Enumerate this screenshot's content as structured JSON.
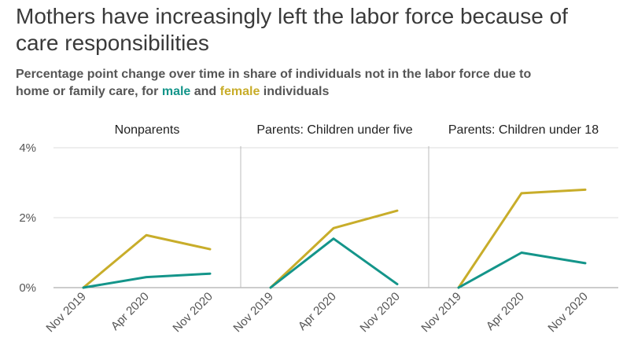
{
  "header": {
    "title": "Mothers have increasingly left the labor force because of care responsibilities",
    "subtitle_before": "Percentage point change over time in share of individuals not in the labor force due to home or family care, for ",
    "male_word": "male",
    "and_word": " and ",
    "female_word": "female",
    "subtitle_after": " individuals"
  },
  "colors": {
    "male": "#14958a",
    "female": "#c8ad2a",
    "grid": "#dddddd",
    "divider": "#bbbbbb"
  },
  "chart_data": {
    "type": "line",
    "x": [
      "Nov 2019",
      "Apr 2020",
      "Nov 2020"
    ],
    "ylim": [
      0,
      4
    ],
    "yticks": [
      "0%",
      "2%",
      "4%"
    ],
    "ytick_values": [
      0,
      2,
      4
    ],
    "panels": [
      {
        "title": "Nonparents",
        "series": [
          {
            "name": "female",
            "values": [
              0,
              1.5,
              1.1
            ]
          },
          {
            "name": "male",
            "values": [
              0,
              0.3,
              0.4
            ]
          }
        ]
      },
      {
        "title": "Parents: Children under five",
        "series": [
          {
            "name": "female",
            "values": [
              0,
              1.7,
              2.2
            ]
          },
          {
            "name": "male",
            "values": [
              0,
              1.4,
              0.1
            ]
          }
        ]
      },
      {
        "title": "Parents: Children under 18",
        "series": [
          {
            "name": "female",
            "values": [
              0,
              2.7,
              2.8
            ]
          },
          {
            "name": "male",
            "values": [
              0,
              1.0,
              0.7
            ]
          }
        ]
      }
    ]
  }
}
